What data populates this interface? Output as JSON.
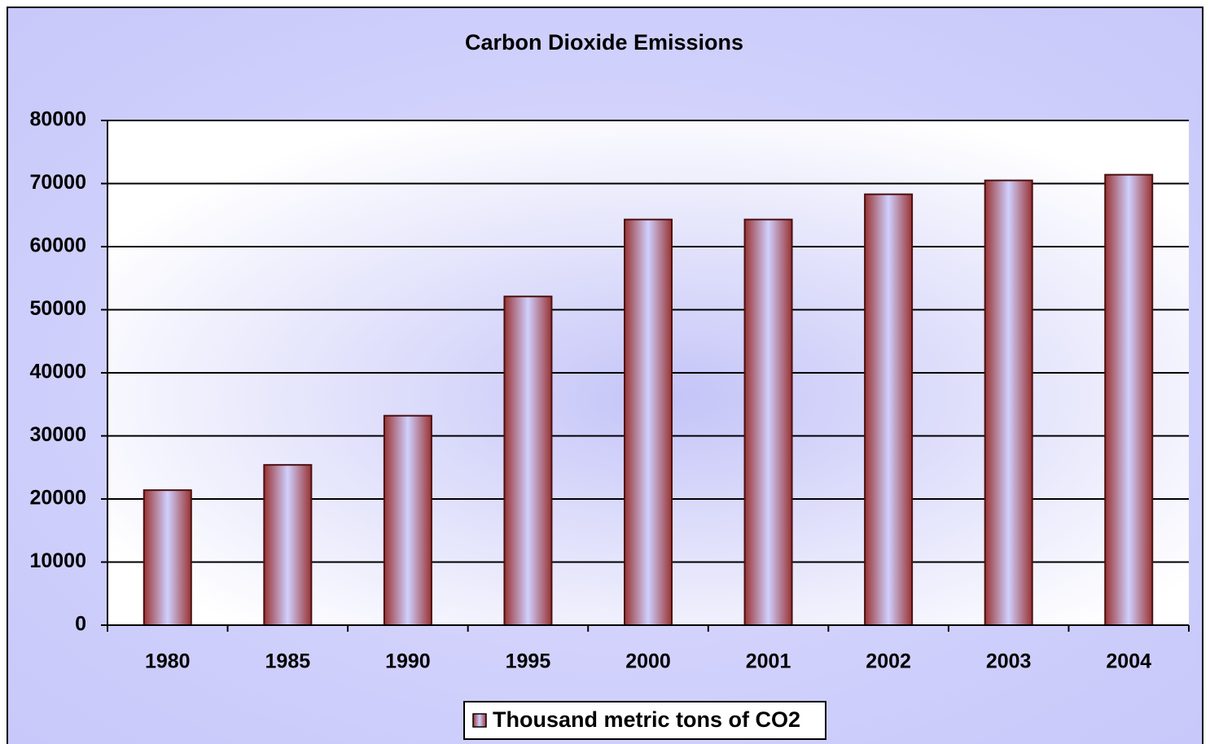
{
  "chart_data": {
    "type": "bar",
    "title": "Carbon Dioxide Emissions",
    "categories": [
      "1980",
      "1985",
      "1990",
      "1995",
      "2000",
      "2001",
      "2002",
      "2003",
      "2004"
    ],
    "series": [
      {
        "name": "Thousand metric tons of CO2",
        "color": "#993333",
        "values": [
          21400,
          25400,
          33200,
          52100,
          64300,
          64300,
          68300,
          70500,
          71400
        ]
      }
    ],
    "ylim": [
      0,
      80000
    ],
    "yticks": [
      0,
      10000,
      20000,
      30000,
      40000,
      50000,
      60000,
      70000,
      80000
    ],
    "grid": true,
    "legend": "bottom"
  }
}
